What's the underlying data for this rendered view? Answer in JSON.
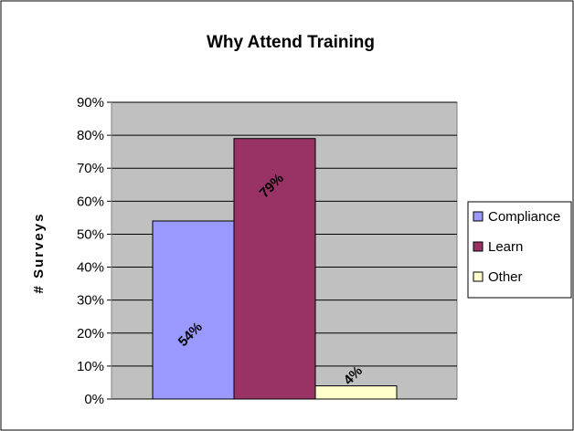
{
  "chart_data": {
    "type": "bar",
    "title": "Why Attend Training",
    "ylabel": "# Surveys",
    "xlabel": "",
    "ylim": [
      0,
      90
    ],
    "yticks": [
      0,
      10,
      20,
      30,
      40,
      50,
      60,
      70,
      80,
      90
    ],
    "ytick_labels": [
      "0%",
      "10%",
      "20%",
      "30%",
      "40%",
      "50%",
      "60%",
      "70%",
      "80%",
      "90%"
    ],
    "grid": true,
    "legend_position": "right",
    "series": [
      {
        "name": "Compliance",
        "value": 54,
        "label": "54%",
        "color": "#9999ff"
      },
      {
        "name": "Learn",
        "value": 79,
        "label": "79%",
        "color": "#993366"
      },
      {
        "name": "Other",
        "value": 4,
        "label": "4%",
        "color": "#ffffcc"
      }
    ],
    "plot_background": "#c0c0c0"
  }
}
